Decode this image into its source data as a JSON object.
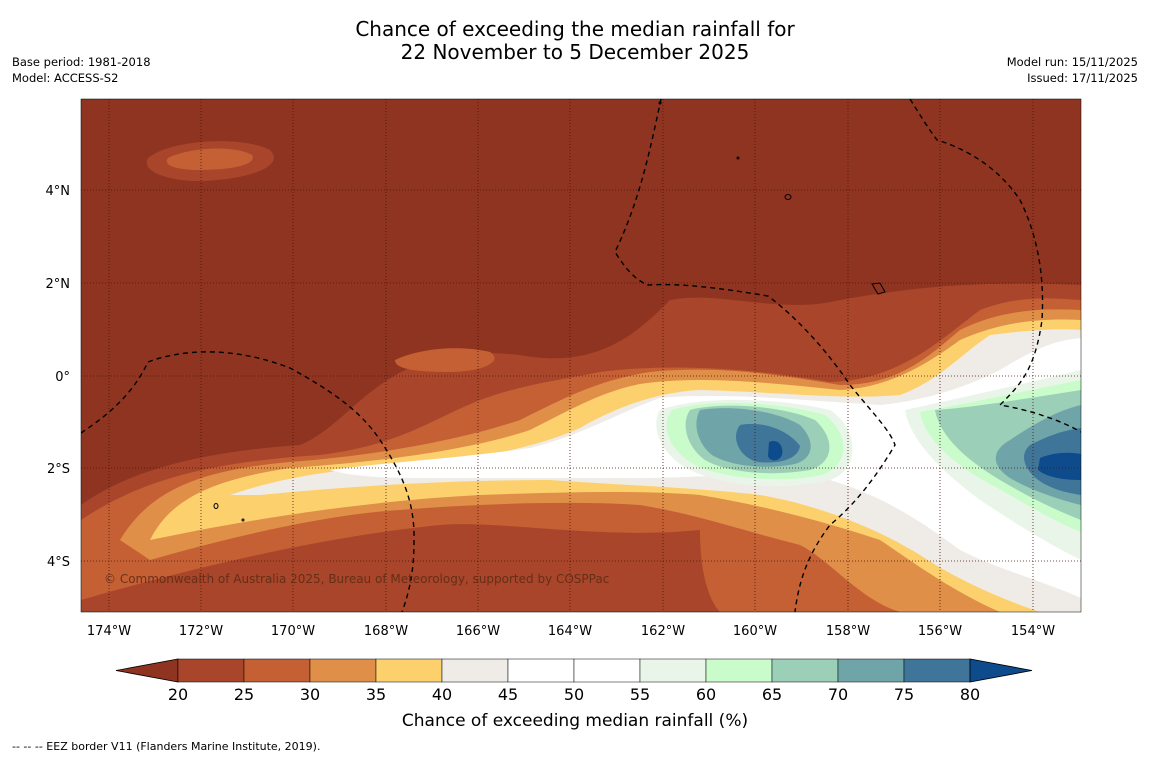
{
  "title": {
    "line1": "Chance of exceeding the median rainfall for",
    "line2": "22 November to 5 December 2025"
  },
  "meta_left": {
    "base_period": "Base period: 1981-2018",
    "model": "Model: ACCESS-S2"
  },
  "meta_right": {
    "model_run": "Model run: 15/11/2025",
    "issued": "Issued: 17/11/2025"
  },
  "map": {
    "lat_labels": [
      "4°N",
      "2°N",
      "0°",
      "2°S",
      "4°S"
    ],
    "lon_labels": [
      "174°W",
      "172°W",
      "170°W",
      "168°W",
      "166°W",
      "164°W",
      "162°W",
      "160°W",
      "158°W",
      "156°W",
      "154°W"
    ],
    "copyright": "© Commonwealth of Australia 2025, Bureau of Meteorology, supported by COSPPac",
    "colors": {
      "lt20": "#8f3420",
      "c20": "#a9452a",
      "c25": "#c55f34",
      "c30": "#df8f48",
      "c35": "#fdd06e",
      "c40": "#efebe6",
      "c45": "#ffffff",
      "c50": "#ffffff",
      "c55": "#eaf5ea",
      "c60": "#c9fcca",
      "c65": "#9ccfb8",
      "c70": "#6fa5a8",
      "c75": "#3f7599",
      "gt80": "#0d4b8c"
    }
  },
  "colorbar": {
    "ticks": [
      "20",
      "25",
      "30",
      "35",
      "40",
      "45",
      "50",
      "55",
      "60",
      "65",
      "70",
      "75",
      "80"
    ],
    "label": "Chance of exceeding median rainfall (%)",
    "colors": [
      "#8f3420",
      "#a9452a",
      "#c55f34",
      "#df8f48",
      "#fdd06e",
      "#efebe6",
      "#ffffff",
      "#ffffff",
      "#eaf5ea",
      "#c9fcca",
      "#9ccfb8",
      "#6fa5a8",
      "#3f7599",
      "#0d4b8c"
    ]
  },
  "footer": "-- -- -- EEZ border V11 (Flanders Marine Institute, 2019)."
}
